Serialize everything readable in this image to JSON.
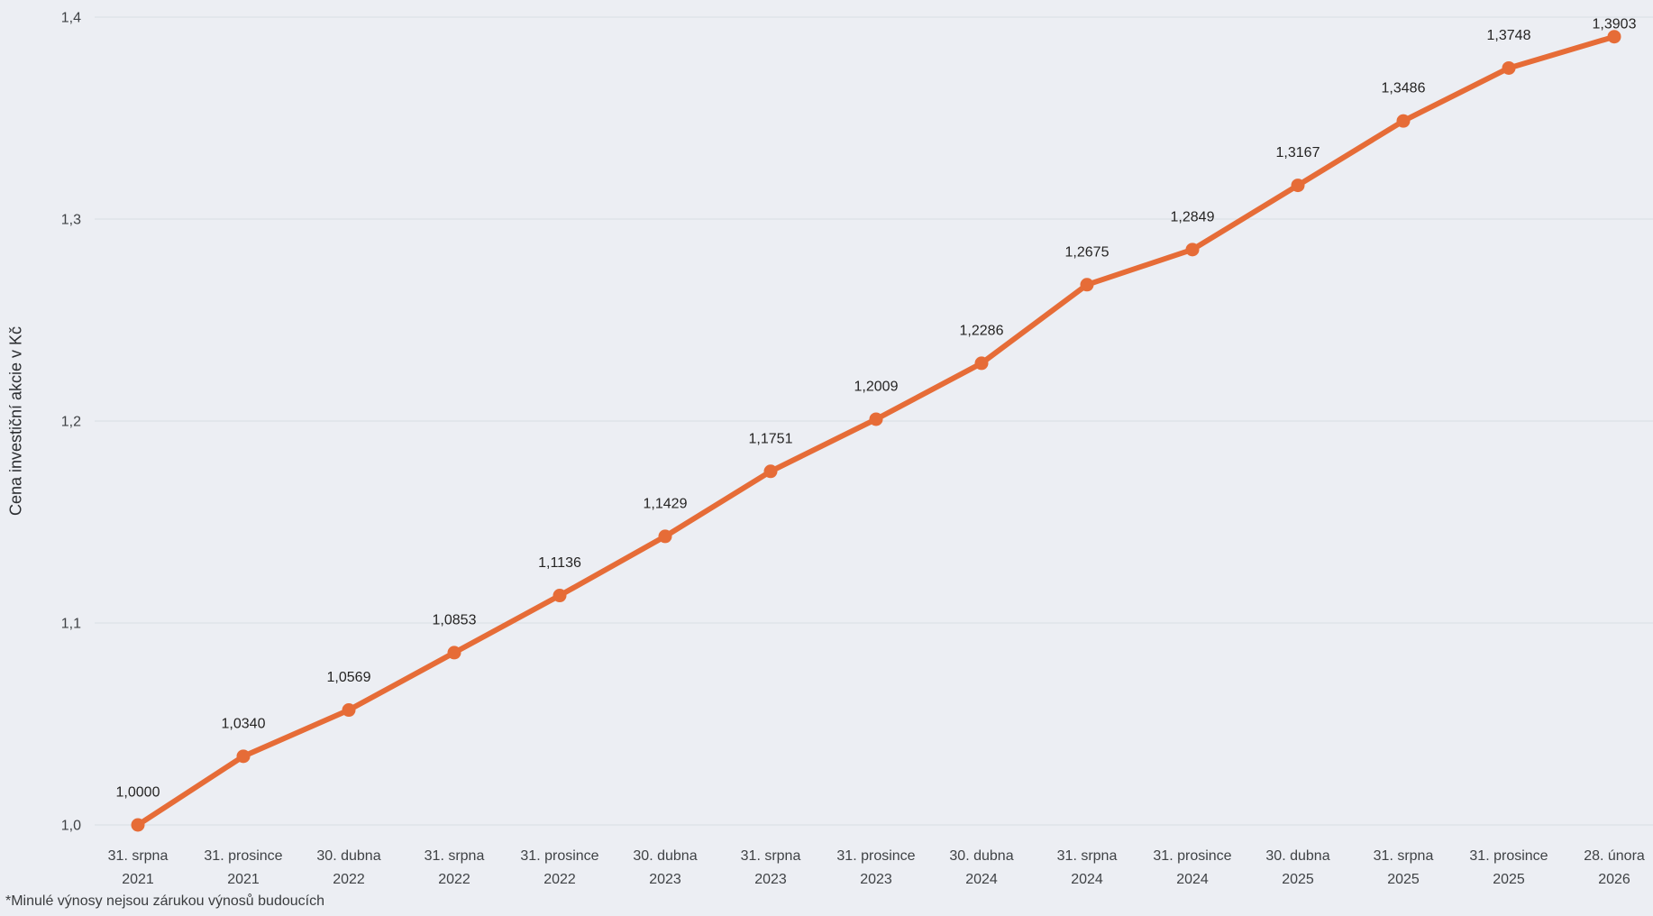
{
  "footnote": "*Minulé výnosy nejsou zárukou výnosů budoucích",
  "chart_data": {
    "type": "line",
    "title": "",
    "xlabel": "",
    "ylabel": "Cena investiční akcie v Kč",
    "ylim": [
      1.0,
      1.4
    ],
    "grid": true,
    "legend": "none",
    "background_color": "#ECEEF3",
    "grid_color": "#D9DDE3",
    "series_color": "#E66C37",
    "yticks": [
      {
        "value": 1.0,
        "label": "1,0"
      },
      {
        "value": 1.1,
        "label": "1,1"
      },
      {
        "value": 1.2,
        "label": "1,2"
      },
      {
        "value": 1.3,
        "label": "1,3"
      },
      {
        "value": 1.4,
        "label": "1,4"
      }
    ],
    "categories": [
      [
        "31. srpna",
        "2021"
      ],
      [
        "31. prosince",
        "2021"
      ],
      [
        "30. dubna",
        "2022"
      ],
      [
        "31. srpna",
        "2022"
      ],
      [
        "31. prosince",
        "2022"
      ],
      [
        "30. dubna",
        "2023"
      ],
      [
        "31. srpna",
        "2023"
      ],
      [
        "31. prosince",
        "2023"
      ],
      [
        "30. dubna",
        "2024"
      ],
      [
        "31. srpna",
        "2024"
      ],
      [
        "31. prosince",
        "2024"
      ],
      [
        "30. dubna",
        "2025"
      ],
      [
        "31. srpna",
        "2025"
      ],
      [
        "31. prosince",
        "2025"
      ],
      [
        "28. února",
        "2026"
      ]
    ],
    "values": [
      1.0,
      1.034,
      1.0569,
      1.0853,
      1.1136,
      1.1429,
      1.1751,
      1.2009,
      1.2286,
      1.2675,
      1.2849,
      1.3167,
      1.3486,
      1.3748,
      1.3903
    ],
    "value_labels": [
      "1,0000",
      "1,0340",
      "1,0569",
      "1,0853",
      "1,1136",
      "1,1429",
      "1,1751",
      "1,2009",
      "1,2286",
      "1,2675",
      "1,2849",
      "1,3167",
      "1,3486",
      "1,3748",
      "1,3903"
    ]
  }
}
